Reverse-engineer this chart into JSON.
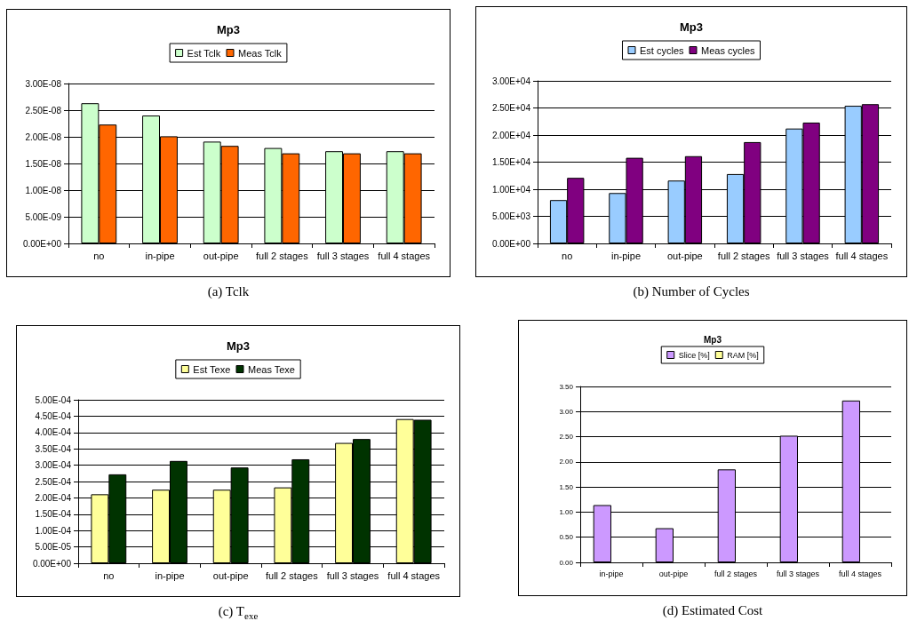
{
  "chart_data": [
    {
      "type": "bar",
      "title": "Mp3",
      "categories": [
        "no",
        "in-pipe",
        "out-pipe",
        "full 2 stages",
        "full 3 stages",
        "full 4 stages"
      ],
      "series": [
        {
          "name": "Est Tclk",
          "color": "#ccffcc",
          "values": [
            2.63e-08,
            2.4e-08,
            1.91e-08,
            1.79e-08,
            1.73e-08,
            1.73e-08
          ]
        },
        {
          "name": "Meas Tclk",
          "color": "#ff6600",
          "values": [
            2.23e-08,
            2.01e-08,
            1.83e-08,
            1.69e-08,
            1.69e-08,
            1.69e-08
          ]
        }
      ],
      "ylim": [
        0,
        3e-08
      ],
      "yticks": [
        {
          "value": 0,
          "label": "0.00E+00"
        },
        {
          "value": 5e-09,
          "label": "5.00E-09"
        },
        {
          "value": 1e-08,
          "label": "1.00E-08"
        },
        {
          "value": 1.5e-08,
          "label": "1.50E-08"
        },
        {
          "value": 2e-08,
          "label": "2.00E-08"
        },
        {
          "value": 2.5e-08,
          "label": "2.50E-08"
        },
        {
          "value": 3e-08,
          "label": "3.00E-08"
        }
      ],
      "grid": "y",
      "legend": "top",
      "annotations": [
        "(a) Tclk"
      ]
    },
    {
      "type": "bar",
      "title": "Mp3",
      "categories": [
        "no",
        "in-pipe",
        "out-pipe",
        "full 2 stages",
        "full 3 stages",
        "full 4 stages"
      ],
      "series": [
        {
          "name": "Est cycles",
          "color": "#99ccff",
          "values": [
            8000,
            9300,
            11600,
            12800,
            21200,
            25400
          ]
        },
        {
          "name": "Meas cycles",
          "color": "#800080",
          "values": [
            12100,
            15800,
            16100,
            18700,
            22300,
            25700
          ]
        }
      ],
      "ylim": [
        0,
        30000
      ],
      "yticks": [
        {
          "value": 0,
          "label": "0.00E+00"
        },
        {
          "value": 5000,
          "label": "5.00E+03"
        },
        {
          "value": 10000,
          "label": "1.00E+04"
        },
        {
          "value": 15000,
          "label": "1.50E+04"
        },
        {
          "value": 20000,
          "label": "2.00E+04"
        },
        {
          "value": 25000,
          "label": "2.50E+04"
        },
        {
          "value": 30000,
          "label": "3.00E+04"
        }
      ],
      "grid": "y",
      "legend": "top",
      "annotations": [
        "(b) Number of Cycles"
      ]
    },
    {
      "type": "bar",
      "title": "Mp3",
      "categories": [
        "no",
        "in-pipe",
        "out-pipe",
        "full 2 stages",
        "full 3 stages",
        "full 4 stages"
      ],
      "series": [
        {
          "name": "Est Texe",
          "color": "#ffff99",
          "values": [
            0.000211,
            0.000225,
            0.000225,
            0.000232,
            0.000368,
            0.000441
          ]
        },
        {
          "name": "Meas Texe",
          "color": "#003300",
          "values": [
            0.000272,
            0.000313,
            0.000293,
            0.000318,
            0.00038,
            0.000439
          ]
        }
      ],
      "ylim": [
        0,
        0.0005
      ],
      "yticks": [
        {
          "value": 0,
          "label": "0.00E+00"
        },
        {
          "value": 5e-05,
          "label": "5.00E-05"
        },
        {
          "value": 0.0001,
          "label": "1.00E-04"
        },
        {
          "value": 0.00015,
          "label": "1.50E-04"
        },
        {
          "value": 0.0002,
          "label": "2.00E-04"
        },
        {
          "value": 0.00025,
          "label": "2.50E-04"
        },
        {
          "value": 0.0003,
          "label": "3.00E-04"
        },
        {
          "value": 0.00035,
          "label": "3.50E-04"
        },
        {
          "value": 0.0004,
          "label": "4.00E-04"
        },
        {
          "value": 0.00045,
          "label": "4.50E-04"
        },
        {
          "value": 0.0005,
          "label": "5.00E-04"
        }
      ],
      "grid": "y",
      "legend": "top",
      "annotations": [
        "(c) T$_{exe}$"
      ]
    },
    {
      "type": "bar",
      "title": "Mp3",
      "categories": [
        "in-pipe",
        "out-pipe",
        "full 2 stages",
        "full 3 stages",
        "full 4 stages"
      ],
      "series": [
        {
          "name": "Slice [%]",
          "color": "#cc99ff",
          "values": [
            1.14,
            0.68,
            1.85,
            2.52,
            3.22
          ]
        },
        {
          "name": "RAM [%]",
          "color": "#ffff99",
          "values": [
            null,
            null,
            null,
            null,
            null
          ]
        }
      ],
      "ylim": [
        0,
        3.5
      ],
      "yticks": [
        {
          "value": 0,
          "label": "0.00"
        },
        {
          "value": 0.5,
          "label": "0.50"
        },
        {
          "value": 1,
          "label": "1.00"
        },
        {
          "value": 1.5,
          "label": "1.50"
        },
        {
          "value": 2,
          "label": "2.00"
        },
        {
          "value": 2.5,
          "label": "2.50"
        },
        {
          "value": 3,
          "label": "3.00"
        },
        {
          "value": 3.5,
          "label": "3.50"
        }
      ],
      "grid": "y",
      "legend": "top",
      "annotations": [
        "(d) Estimated Cost"
      ]
    }
  ]
}
